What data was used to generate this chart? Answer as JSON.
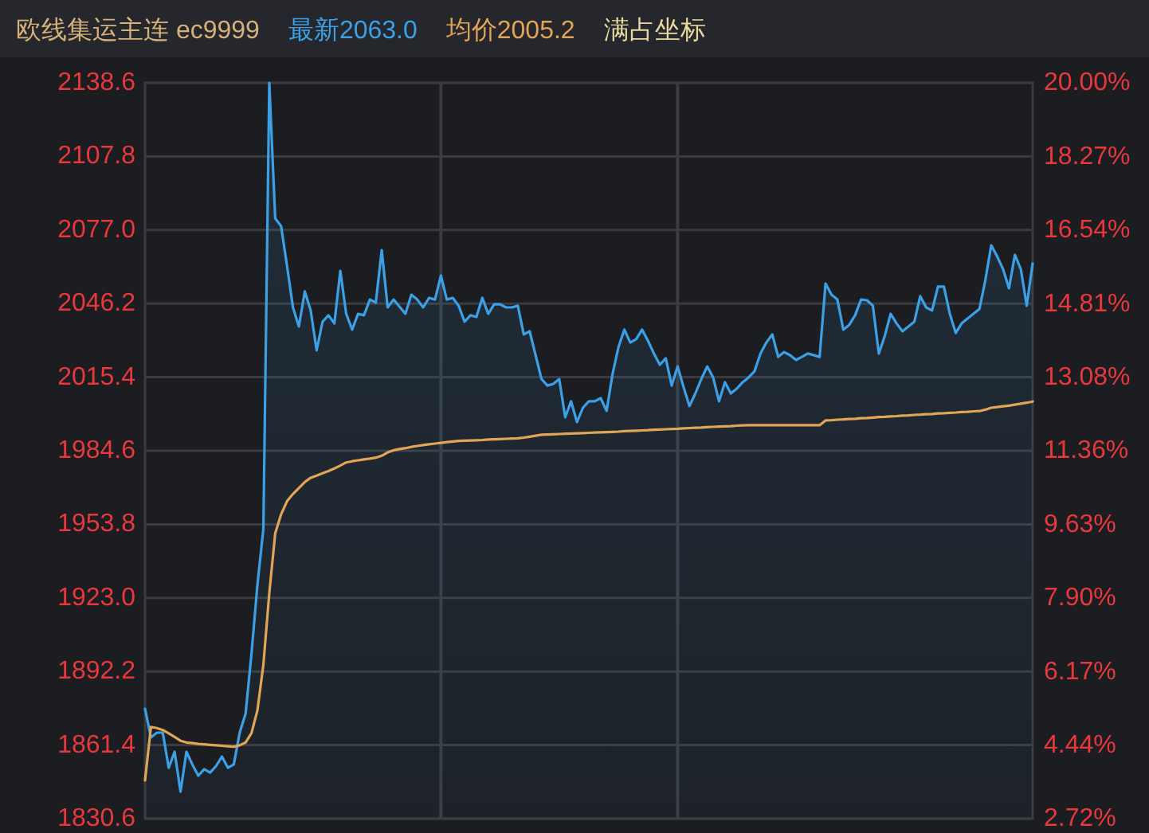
{
  "chart_data": {
    "type": "line",
    "title": "欧线集运主连 ec9999",
    "annotations": [
      "满占坐标"
    ],
    "grid": "y",
    "tick_labels": "y",
    "categories": [
      null,
      null,
      null,
      null,
      null,
      null,
      null,
      null,
      null,
      null,
      null,
      null,
      null,
      null,
      null,
      null,
      null,
      null,
      null,
      null,
      null,
      null,
      null,
      null,
      null,
      null,
      null,
      null,
      null,
      null,
      null,
      null,
      null,
      null,
      null,
      null,
      null,
      null,
      null,
      null,
      null,
      null,
      null,
      null,
      null,
      null,
      null,
      null,
      null,
      null,
      null,
      null,
      null,
      null,
      null,
      null,
      null,
      null,
      null,
      null,
      null,
      null,
      null,
      null,
      null,
      null,
      null,
      null,
      null,
      null,
      null,
      null,
      null,
      null,
      null,
      null,
      null,
      null,
      null,
      null,
      null,
      null,
      null,
      null,
      null,
      null,
      null,
      null,
      null,
      null,
      null,
      null,
      null,
      null,
      null,
      null,
      null,
      null,
      null,
      null,
      null,
      null,
      null,
      null,
      null,
      null,
      null,
      null,
      null,
      null,
      null,
      null,
      null,
      null,
      null,
      null,
      null,
      null,
      null,
      null,
      null,
      null,
      null,
      null,
      null,
      null,
      null,
      null,
      null,
      null,
      null,
      null,
      null,
      null,
      null,
      null,
      null,
      null,
      null,
      null,
      null,
      null,
      null,
      null,
      null,
      null,
      null,
      null,
      null,
      null,
      null
    ],
    "ylim": [
      1830.6,
      2138.6
    ],
    "yticks": [
      {
        "value": 1830.6,
        "label": "1830.6"
      },
      {
        "value": 1861.4,
        "label": "1861.4"
      },
      {
        "value": 1892.2,
        "label": "1892.2"
      },
      {
        "value": 1923.0,
        "label": "1923.0"
      },
      {
        "value": 1953.8,
        "label": "1953.8"
      },
      {
        "value": 1984.6,
        "label": "1984.6"
      },
      {
        "value": 2015.4,
        "label": "2015.4"
      },
      {
        "value": 2046.2,
        "label": "2046.2"
      },
      {
        "value": 2077.0,
        "label": "2077.0"
      },
      {
        "value": 2107.8,
        "label": "2107.8"
      },
      {
        "value": 2138.6,
        "label": "2138.6"
      }
    ],
    "y2lim": [
      2.72,
      20.0
    ],
    "y2ticks": [
      {
        "value": 2.72,
        "label": "2.72%"
      },
      {
        "value": 4.44,
        "label": "4.44%"
      },
      {
        "value": 6.17,
        "label": "6.17%"
      },
      {
        "value": 7.9,
        "label": "7.90%"
      },
      {
        "value": 9.63,
        "label": "9.63%"
      },
      {
        "value": 11.36,
        "label": "11.36%"
      },
      {
        "value": 13.08,
        "label": "13.08%"
      },
      {
        "value": 14.81,
        "label": "14.81%"
      },
      {
        "value": 16.54,
        "label": "16.54%"
      },
      {
        "value": 18.27,
        "label": "18.27%"
      },
      {
        "value": 20.0,
        "label": "20.00%"
      }
    ],
    "series": [
      {
        "name": "最新2063.0",
        "type": "area",
        "color": "#3ca0e6",
        "values": [
          1876.6,
          1864.6,
          1866.6,
          1866.6,
          1851.9,
          1858.6,
          1841.9,
          1858.6,
          1853.3,
          1848.6,
          1851.3,
          1849.9,
          1852.6,
          1856.6,
          1851.9,
          1853.3,
          1866.6,
          1874.6,
          1899.9,
          1928.6,
          1951.9,
          2138.6,
          2081.9,
          2078.6,
          2061.9,
          2044.6,
          2036.6,
          2051.3,
          2043.3,
          2026.6,
          2038.6,
          2041.3,
          2037.9,
          2059.9,
          2041.9,
          2035.3,
          2041.9,
          2041.3,
          2047.9,
          2046.6,
          2068.6,
          2044.6,
          2047.9,
          2044.9,
          2041.9,
          2049.9,
          2047.9,
          2044.6,
          2048.6,
          2047.9,
          2057.9,
          2047.9,
          2048.6,
          2045.3,
          2038.6,
          2041.3,
          2040.6,
          2048.6,
          2041.9,
          2045.9,
          2045.9,
          2044.6,
          2044.6,
          2045.3,
          2033.3,
          2034.6,
          2024.6,
          2014.6,
          2011.9,
          2012.6,
          2014.6,
          1998.6,
          2005.3,
          1996.6,
          2002.6,
          2005.3,
          2005.3,
          2006.6,
          2001.3,
          2016.6,
          2027.9,
          2035.3,
          2029.9,
          2031.3,
          2035.3,
          2030.6,
          2025.3,
          2020.6,
          2023.3,
          2011.9,
          2019.9,
          2011.3,
          2003.3,
          2008.6,
          2014.6,
          2019.9,
          2015.3,
          2005.3,
          2013.3,
          2008.6,
          2010.6,
          2013.3,
          2015.3,
          2017.9,
          2025.3,
          2029.9,
          2033.3,
          2023.9,
          2025.9,
          2024.6,
          2022.6,
          2023.9,
          2025.3,
          2024.6,
          2023.9,
          2054.6,
          2049.9,
          2047.9,
          2035.3,
          2037.3,
          2041.3,
          2047.9,
          2047.6,
          2045.3,
          2025.3,
          2032.6,
          2041.9,
          2037.9,
          2034.6,
          2036.6,
          2038.6,
          2049.3,
          2044.6,
          2043.3,
          2053.3,
          2053.3,
          2041.9,
          2033.9,
          2037.9,
          2039.9,
          2041.9,
          2043.9,
          2055.9,
          2070.6,
          2065.9,
          2060.6,
          2052.6,
          2066.6,
          2060.6,
          2045.3,
          2063.0
        ]
      },
      {
        "name": "均价2005.2",
        "type": "line",
        "color": "#e2a456",
        "values": [
          1846.6,
          1869.0,
          1868.5,
          1867.7,
          1866.3,
          1864.8,
          1863.2,
          1862.5,
          1862.2,
          1861.9,
          1861.7,
          1861.5,
          1861.3,
          1861.1,
          1860.9,
          1860.7,
          1861.3,
          1862.5,
          1866.5,
          1876.0,
          1895.0,
          1925.0,
          1950.0,
          1958.0,
          1963.5,
          1966.5,
          1969.0,
          1971.5,
          1973.3,
          1974.2,
          1975.2,
          1976.1,
          1977.2,
          1978.4,
          1979.7,
          1980.2,
          1980.6,
          1981.0,
          1981.3,
          1981.7,
          1982.5,
          1983.9,
          1984.8,
          1985.3,
          1985.7,
          1986.2,
          1986.6,
          1987.0,
          1987.3,
          1987.6,
          1987.9,
          1988.2,
          1988.5,
          1988.7,
          1988.8,
          1988.9,
          1989.0,
          1989.1,
          1989.3,
          1989.4,
          1989.5,
          1989.6,
          1989.7,
          1989.8,
          1990.1,
          1990.5,
          1990.9,
          1991.3,
          1991.4,
          1991.5,
          1991.6,
          1991.7,
          1991.8,
          1991.9,
          1992.0,
          1992.1,
          1992.2,
          1992.3,
          1992.4,
          1992.5,
          1992.6,
          1992.8,
          1992.9,
          1993.0,
          1993.1,
          1993.2,
          1993.4,
          1993.5,
          1993.6,
          1993.7,
          1993.8,
          1994.0,
          1994.1,
          1994.2,
          1994.3,
          1994.5,
          1994.6,
          1994.7,
          1994.8,
          1994.9,
          1995.1,
          1995.2,
          1995.3,
          1995.3,
          1995.3,
          1995.3,
          1995.3,
          1995.3,
          1995.3,
          1995.3,
          1995.3,
          1995.3,
          1995.3,
          1995.3,
          1995.3,
          1997.3,
          1997.4,
          1997.6,
          1997.7,
          1997.9,
          1998.0,
          1998.2,
          1998.3,
          1998.5,
          1998.7,
          1998.8,
          1999.0,
          1999.1,
          1999.3,
          1999.4,
          1999.6,
          1999.7,
          1999.9,
          2000.0,
          2000.2,
          2000.3,
          2000.5,
          2000.6,
          2000.8,
          2000.9,
          2001.1,
          2001.2,
          2001.8,
          2002.6,
          2002.9,
          2003.2,
          2003.5,
          2003.9,
          2004.3,
          2004.7,
          2005.2
        ]
      }
    ]
  }
}
